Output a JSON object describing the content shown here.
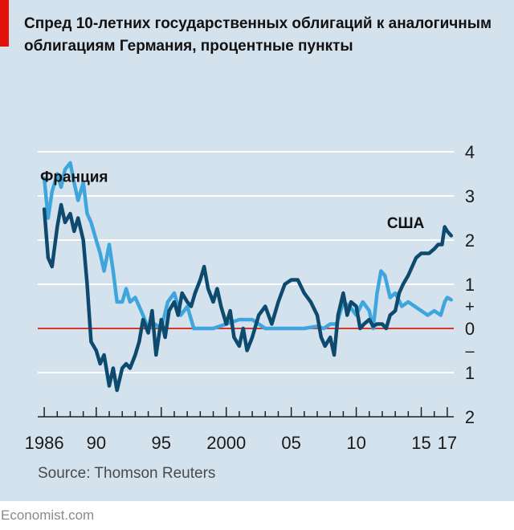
{
  "title": "Спред 10-летних государственных облигаций к аналогичным облигациям Германия, процентные пункты",
  "source": "Source: Thomson Reuters",
  "credit": "Economist.com",
  "colors": {
    "background": "#d4e2ee",
    "accent": "#e3120b",
    "zero_line": "#d8362c",
    "usa": "#0d4a6e",
    "france": "#3ea6dc"
  },
  "chart_data": {
    "type": "line",
    "ylim": [
      -2,
      4
    ],
    "xlim": [
      1985.5,
      2017.5
    ],
    "y_ticks": [
      {
        "value": 4,
        "label": "4"
      },
      {
        "value": 3,
        "label": "3"
      },
      {
        "value": 2,
        "label": "2"
      },
      {
        "value": 1,
        "label": "1"
      },
      {
        "value": 0,
        "label": "0"
      },
      {
        "value": -1,
        "label": "1"
      },
      {
        "value": -2,
        "label": "2"
      }
    ],
    "sign_labels": [
      {
        "value": 0.5,
        "label": "+"
      },
      {
        "value": -0.5,
        "label": "–"
      }
    ],
    "x_tick_labels": [
      {
        "value": 1986,
        "label": "1986"
      },
      {
        "value": 1990,
        "label": "90"
      },
      {
        "value": 1995,
        "label": "95"
      },
      {
        "value": 2000,
        "label": "2000"
      },
      {
        "value": 2005,
        "label": "05"
      },
      {
        "value": 2010,
        "label": "10"
      },
      {
        "value": 2015,
        "label": "15"
      },
      {
        "value": 2017,
        "label": "17"
      }
    ],
    "series": [
      {
        "name": "Франция",
        "x": [
          1986.0,
          1986.3,
          1986.6,
          1987.0,
          1987.3,
          1987.6,
          1988.0,
          1988.3,
          1988.6,
          1989.0,
          1989.3,
          1989.6,
          1990.0,
          1990.3,
          1990.6,
          1991.0,
          1991.3,
          1991.6,
          1992.0,
          1992.3,
          1992.6,
          1993.0,
          1993.3,
          1993.6,
          1994.0,
          1994.5,
          1995.0,
          1995.5,
          1996.0,
          1996.5,
          1997.0,
          1997.5,
          1998.0,
          1999.0,
          2000.0,
          2001.0,
          2002.0,
          2003.0,
          2004.0,
          2005.0,
          2006.0,
          2007.0,
          2007.5,
          2008.0,
          2008.5,
          2009.0,
          2009.5,
          2010.0,
          2010.5,
          2011.0,
          2011.3,
          2011.6,
          2011.9,
          2012.2,
          2012.6,
          2013.0,
          2013.5,
          2014.0,
          2014.5,
          2015.0,
          2015.5,
          2016.0,
          2016.5,
          2016.8,
          2017.0,
          2017.3
        ],
        "values": [
          3.4,
          2.5,
          3.1,
          3.5,
          3.2,
          3.6,
          3.75,
          3.3,
          2.9,
          3.3,
          2.6,
          2.4,
          2.0,
          1.7,
          1.3,
          1.9,
          1.3,
          0.6,
          0.6,
          0.9,
          0.6,
          0.7,
          0.5,
          0.3,
          0.0,
          0.1,
          0.0,
          0.6,
          0.8,
          0.3,
          0.5,
          0.0,
          0.0,
          0.0,
          0.1,
          0.2,
          0.2,
          0.0,
          0.0,
          0.0,
          0.0,
          0.05,
          0.0,
          0.1,
          0.1,
          0.6,
          0.5,
          0.3,
          0.6,
          0.4,
          0.0,
          0.8,
          1.3,
          1.2,
          0.7,
          0.8,
          0.5,
          0.6,
          0.5,
          0.4,
          0.3,
          0.4,
          0.3,
          0.6,
          0.7,
          0.65
        ]
      },
      {
        "name": "США",
        "x": [
          1986.0,
          1986.3,
          1986.6,
          1987.0,
          1987.3,
          1987.6,
          1988.0,
          1988.3,
          1988.6,
          1989.0,
          1989.3,
          1989.6,
          1990.0,
          1990.3,
          1990.6,
          1991.0,
          1991.3,
          1991.6,
          1992.0,
          1992.3,
          1992.6,
          1993.0,
          1993.3,
          1993.6,
          1994.0,
          1994.3,
          1994.6,
          1995.0,
          1995.3,
          1995.6,
          1996.0,
          1996.3,
          1996.6,
          1997.0,
          1997.3,
          1997.6,
          1998.0,
          1998.3,
          1998.6,
          1999.0,
          1999.3,
          1999.6,
          2000.0,
          2000.3,
          2000.6,
          2001.0,
          2001.3,
          2001.6,
          2002.0,
          2002.5,
          2003.0,
          2003.5,
          2004.0,
          2004.5,
          2005.0,
          2005.5,
          2006.0,
          2006.5,
          2007.0,
          2007.3,
          2007.6,
          2008.0,
          2008.3,
          2008.6,
          2009.0,
          2009.3,
          2009.6,
          2010.0,
          2010.3,
          2010.6,
          2011.0,
          2011.3,
          2011.6,
          2012.0,
          2012.3,
          2012.6,
          2013.0,
          2013.3,
          2013.6,
          2014.0,
          2014.3,
          2014.6,
          2015.0,
          2015.3,
          2015.6,
          2016.0,
          2016.3,
          2016.6,
          2016.8,
          2017.0,
          2017.3
        ],
        "values": [
          2.7,
          1.6,
          1.4,
          2.3,
          2.8,
          2.4,
          2.6,
          2.2,
          2.5,
          2.0,
          1.0,
          -0.3,
          -0.5,
          -0.8,
          -0.6,
          -1.3,
          -0.9,
          -1.4,
          -0.9,
          -0.8,
          -0.9,
          -0.6,
          -0.3,
          0.2,
          -0.1,
          0.4,
          -0.6,
          0.2,
          -0.2,
          0.4,
          0.6,
          0.3,
          0.8,
          0.6,
          0.5,
          0.8,
          1.1,
          1.4,
          0.9,
          0.6,
          0.9,
          0.5,
          0.1,
          0.4,
          -0.2,
          -0.4,
          0.0,
          -0.5,
          -0.2,
          0.3,
          0.5,
          0.1,
          0.6,
          1.0,
          1.1,
          1.1,
          0.8,
          0.6,
          0.3,
          -0.2,
          -0.4,
          -0.2,
          -0.6,
          0.3,
          0.8,
          0.3,
          0.6,
          0.5,
          0.0,
          0.1,
          0.2,
          0.05,
          0.1,
          0.1,
          0.0,
          0.3,
          0.4,
          0.8,
          1.0,
          1.2,
          1.4,
          1.6,
          1.7,
          1.7,
          1.7,
          1.8,
          1.9,
          1.9,
          2.3,
          2.2,
          2.1
        ]
      }
    ],
    "annotations": [
      {
        "text": "Франция",
        "x": 1988.3,
        "y": 3.45
      },
      {
        "text": "США",
        "x": 2013.8,
        "y": 2.4
      }
    ],
    "grid": "horizontal",
    "zero_line": true
  }
}
